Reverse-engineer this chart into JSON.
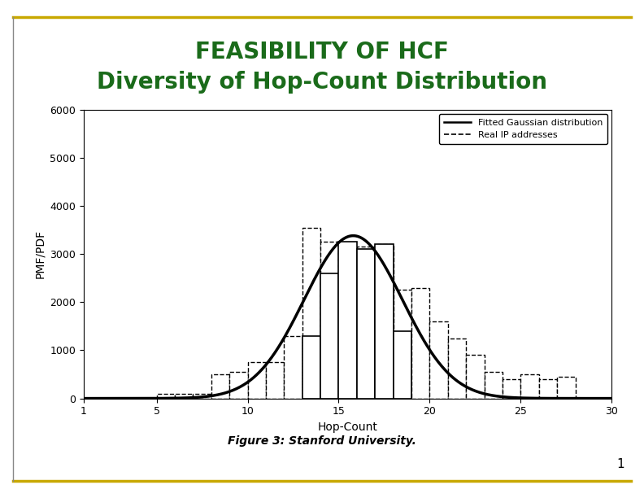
{
  "title_line1": "FEASIBILITY OF HCF",
  "title_line2": "Diversity of Hop-Count Distribution",
  "title_color": "#1a6b1a",
  "title_line1_fontsize": 20,
  "title_line2_fontsize": 20,
  "top_border_color": "#c8a800",
  "bottom_border_color": "#c8a800",
  "slide_number": "1",
  "figure_caption": "Figure 3: Stanford University.",
  "xlabel": "Hop-Count",
  "ylabel": "PMF/PDF",
  "xlim": [
    1,
    30
  ],
  "ylim": [
    0,
    6000
  ],
  "yticks": [
    0,
    1000,
    2000,
    3000,
    4000,
    5000,
    6000
  ],
  "xticks": [
    1,
    5,
    10,
    15,
    20,
    25,
    30
  ],
  "background_color": "#ffffff",
  "solid_bars": {
    "13": 1300,
    "14": 2600,
    "15": 3250,
    "16": 3100,
    "17": 3200,
    "18": 1400
  },
  "dashed_bars": {
    "5": 100,
    "6": 100,
    "7": 100,
    "8": 500,
    "9": 550,
    "10": 750,
    "11": 750,
    "12": 1300,
    "13": 3550,
    "14": 3250,
    "15": 3050,
    "16": 3150,
    "17": 3200,
    "18": 2250,
    "19": 2300,
    "20": 1600,
    "21": 1250,
    "22": 900,
    "23": 550,
    "24": 400,
    "25": 500,
    "26": 400,
    "27": 450
  },
  "gaussian_mu": 15.8,
  "gaussian_sigma": 2.7,
  "gaussian_amplitude": 3380,
  "legend_labels": [
    "Fitted Gaussian distribution",
    "Real IP addresses"
  ]
}
